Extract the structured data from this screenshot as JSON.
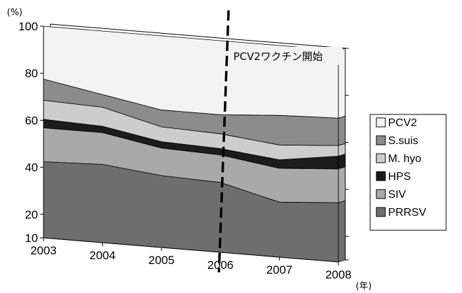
{
  "chart_data": {
    "type": "area",
    "stacked": true,
    "style": "3d",
    "x": [
      2003,
      2004,
      2005,
      2006,
      2007,
      2008
    ],
    "ylim": [
      10,
      100
    ],
    "yticks": [
      10,
      20,
      40,
      60,
      80,
      100
    ],
    "ytick_labels": [
      "10",
      "20",
      "40",
      "60",
      "80",
      "100"
    ],
    "xtick_labels": [
      "2003",
      "2004",
      "2005",
      "2006",
      "2007",
      "2008"
    ],
    "y_unit_label": "(%)",
    "x_unit_label": "(年)",
    "grid": false,
    "legend_position": "right",
    "series": [
      {
        "name": "PRRSV",
        "color": "#6e6e6e",
        "values": [
          36,
          37,
          34,
          33,
          26,
          28
        ]
      },
      {
        "name": "SIV",
        "color": "#a9a9a9",
        "values": [
          16,
          15,
          13,
          13,
          16,
          16
        ]
      },
      {
        "name": "HPS",
        "color": "#1c1c1c",
        "values": [
          4,
          3,
          3,
          3,
          4,
          6
        ]
      },
      {
        "name": "M. hyo",
        "color": "#cdcdcd",
        "values": [
          9,
          9,
          7,
          7,
          7,
          5
        ]
      },
      {
        "name": "S.suis",
        "color": "#8c8c8c",
        "values": [
          10,
          6,
          8,
          9,
          14,
          13
        ]
      },
      {
        "name": "PCV2",
        "color": "#f3f3f3",
        "values": [
          25,
          30,
          35,
          35,
          33,
          32
        ]
      }
    ],
    "annotation": {
      "text": "PCV2ワクチン開始",
      "x": 2006
    }
  }
}
